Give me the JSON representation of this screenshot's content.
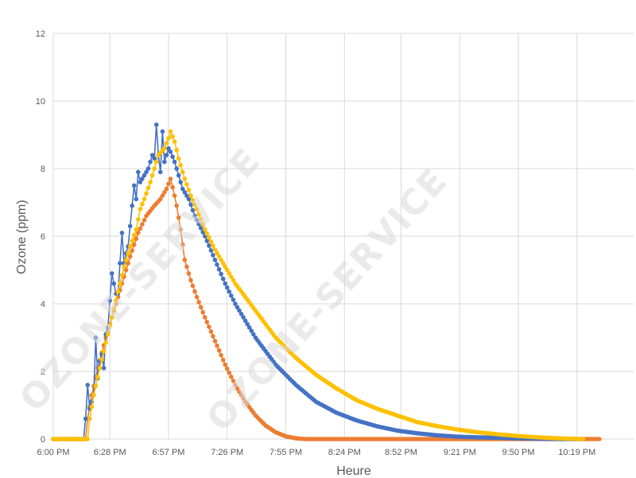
{
  "watermark": "OZONE-SERVICE",
  "chart_data": {
    "type": "line",
    "title": "",
    "xlabel": "Heure",
    "ylabel": "Ozone (ppm)",
    "x_tick_labels": [
      "6:00 PM",
      "6:28 PM",
      "6:57 PM",
      "7:26 PM",
      "7:55 PM",
      "8:24 PM",
      "8:52 PM",
      "9:21 PM",
      "9:50 PM",
      "10:19 PM"
    ],
    "x_tick_minutes": [
      0,
      28,
      57,
      86,
      115,
      144,
      172,
      201,
      230,
      259
    ],
    "xlim_minutes": [
      0,
      287
    ],
    "ylim": [
      0,
      12
    ],
    "yticks": [
      0,
      2,
      4,
      6,
      8,
      10,
      12
    ],
    "grid": true,
    "legend": "none",
    "series": [
      {
        "color": "#4472c4",
        "points": [
          [
            0,
            0
          ],
          [
            15,
            0
          ],
          [
            16,
            0.6
          ],
          [
            17,
            1.6
          ],
          [
            18,
            0.9
          ],
          [
            20,
            1.3
          ],
          [
            21,
            3.0
          ],
          [
            22,
            1.8
          ],
          [
            23,
            2.3
          ],
          [
            24,
            2.5
          ],
          [
            25,
            2.1
          ],
          [
            26,
            3.1
          ],
          [
            27,
            3.3
          ],
          [
            28,
            4.1
          ],
          [
            29,
            4.9
          ],
          [
            30,
            4.6
          ],
          [
            31,
            4.3
          ],
          [
            32,
            4.3
          ],
          [
            33,
            5.2
          ],
          [
            34,
            6.1
          ],
          [
            35,
            5.2
          ],
          [
            36,
            5.5
          ],
          [
            37,
            5.7
          ],
          [
            38,
            6.3
          ],
          [
            39,
            6.9
          ],
          [
            40,
            7.5
          ],
          [
            41,
            7.1
          ],
          [
            42,
            7.9
          ],
          [
            43,
            7.6
          ],
          [
            45,
            7.8
          ],
          [
            47,
            8.0
          ],
          [
            49,
            8.4
          ],
          [
            50,
            8.3
          ],
          [
            51,
            9.3
          ],
          [
            52,
            8.4
          ],
          [
            53,
            7.9
          ],
          [
            54,
            9.1
          ],
          [
            55,
            8.2
          ],
          [
            57,
            8.6
          ],
          [
            58,
            8.5
          ],
          [
            60,
            8.2
          ],
          [
            62,
            7.8
          ],
          [
            64,
            7.4
          ],
          [
            67,
            7.1
          ],
          [
            70,
            6.6
          ],
          [
            75,
            6.0
          ],
          [
            80,
            5.3
          ],
          [
            85,
            4.6
          ],
          [
            90,
            4.0
          ],
          [
            95,
            3.5
          ],
          [
            100,
            3.0
          ],
          [
            110,
            2.2
          ],
          [
            120,
            1.6
          ],
          [
            130,
            1.1
          ],
          [
            140,
            0.78
          ],
          [
            150,
            0.55
          ],
          [
            160,
            0.38
          ],
          [
            170,
            0.25
          ],
          [
            180,
            0.17
          ],
          [
            190,
            0.11
          ],
          [
            200,
            0.07
          ],
          [
            210,
            0.05
          ],
          [
            230,
            0.02
          ],
          [
            250,
            0.0
          ],
          [
            262,
            0.0
          ]
        ]
      },
      {
        "color": "#ed7d31",
        "points": [
          [
            0,
            0
          ],
          [
            16,
            0
          ],
          [
            17,
            0.6
          ],
          [
            19,
            1.3
          ],
          [
            22,
            2.1
          ],
          [
            26,
            3.0
          ],
          [
            30,
            3.8
          ],
          [
            34,
            4.6
          ],
          [
            38,
            5.4
          ],
          [
            42,
            6.1
          ],
          [
            46,
            6.6
          ],
          [
            50,
            6.9
          ],
          [
            53,
            7.1
          ],
          [
            56,
            7.4
          ],
          [
            58,
            7.7
          ],
          [
            60,
            7.2
          ],
          [
            61,
            6.9
          ],
          [
            63,
            6.2
          ],
          [
            65,
            5.3
          ],
          [
            68,
            4.7
          ],
          [
            71,
            4.2
          ],
          [
            75,
            3.6
          ],
          [
            80,
            2.9
          ],
          [
            85,
            2.2
          ],
          [
            90,
            1.6
          ],
          [
            95,
            1.1
          ],
          [
            100,
            0.7
          ],
          [
            105,
            0.4
          ],
          [
            110,
            0.2
          ],
          [
            115,
            0.08
          ],
          [
            120,
            0.02
          ],
          [
            125,
            0.0
          ],
          [
            270,
            0.0
          ]
        ]
      },
      {
        "color": "#ffc000",
        "points": [
          [
            0,
            0
          ],
          [
            17,
            0
          ],
          [
            18,
            0.6
          ],
          [
            20,
            1.3
          ],
          [
            23,
            2.1
          ],
          [
            27,
            3.1
          ],
          [
            31,
            4.1
          ],
          [
            35,
            5.1
          ],
          [
            38,
            5.7
          ],
          [
            41,
            6.2
          ],
          [
            43,
            6.8
          ],
          [
            45,
            7.1
          ],
          [
            48,
            7.6
          ],
          [
            50,
            8.0
          ],
          [
            52,
            8.4
          ],
          [
            55,
            8.6
          ],
          [
            57,
            8.9
          ],
          [
            58,
            9.1
          ],
          [
            60,
            8.8
          ],
          [
            62,
            8.3
          ],
          [
            65,
            7.7
          ],
          [
            68,
            7.2
          ],
          [
            71,
            6.8
          ],
          [
            75,
            6.2
          ],
          [
            80,
            5.6
          ],
          [
            85,
            5.1
          ],
          [
            90,
            4.6
          ],
          [
            95,
            4.2
          ],
          [
            100,
            3.8
          ],
          [
            110,
            3.0
          ],
          [
            120,
            2.4
          ],
          [
            130,
            1.9
          ],
          [
            140,
            1.5
          ],
          [
            150,
            1.15
          ],
          [
            160,
            0.9
          ],
          [
            170,
            0.7
          ],
          [
            180,
            0.5
          ],
          [
            190,
            0.38
          ],
          [
            200,
            0.28
          ],
          [
            210,
            0.2
          ],
          [
            220,
            0.14
          ],
          [
            230,
            0.09
          ],
          [
            240,
            0.05
          ],
          [
            250,
            0.02
          ],
          [
            262,
            0.0
          ]
        ]
      }
    ]
  }
}
